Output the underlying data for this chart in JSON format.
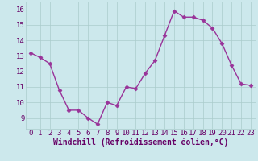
{
  "x": [
    0,
    1,
    2,
    3,
    4,
    5,
    6,
    7,
    8,
    9,
    10,
    11,
    12,
    13,
    14,
    15,
    16,
    17,
    18,
    19,
    20,
    21,
    22,
    23
  ],
  "y": [
    13.2,
    12.9,
    12.5,
    10.8,
    9.5,
    9.5,
    9.0,
    8.6,
    10.0,
    9.8,
    11.0,
    10.9,
    11.9,
    12.7,
    14.3,
    15.9,
    15.5,
    15.5,
    15.3,
    14.8,
    13.8,
    12.4,
    11.2,
    11.1
  ],
  "line_color": "#993399",
  "marker": "D",
  "marker_size": 2.5,
  "line_width": 1.0,
  "bg_color": "#cce8ec",
  "grid_color": "#aacccc",
  "xlabel": "Windchill (Refroidissement éolien,°C)",
  "xlabel_color": "#660066",
  "xlabel_fontsize": 7,
  "tick_label_color": "#660066",
  "tick_fontsize": 6.5,
  "ylim": [
    8.3,
    16.5
  ],
  "yticks": [
    9,
    10,
    11,
    12,
    13,
    14,
    15,
    16
  ],
  "xticks": [
    0,
    1,
    2,
    3,
    4,
    5,
    6,
    7,
    8,
    9,
    10,
    11,
    12,
    13,
    14,
    15,
    16,
    17,
    18,
    19,
    20,
    21,
    22,
    23
  ]
}
